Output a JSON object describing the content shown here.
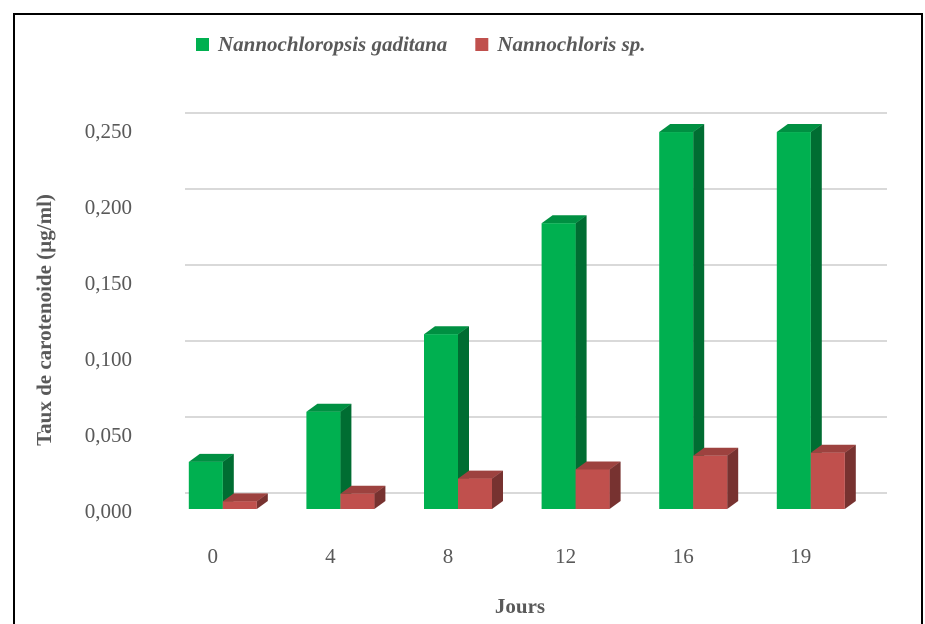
{
  "chart_data": {
    "type": "bar3d",
    "y_axis_label": "Taux de carotenoide (µg/ml)",
    "x_axis_label": "Jours",
    "categories": [
      "0",
      "4",
      "8",
      "12",
      "16",
      "19"
    ],
    "series": [
      {
        "name": "Nannochloropsis gaditana",
        "color": "#00b050",
        "values": [
          0.031,
          0.064,
          0.115,
          0.188,
          0.248,
          0.248
        ]
      },
      {
        "name": "Nannochloris sp.",
        "color": "#c0504d",
        "values": [
          0.005,
          0.01,
          0.02,
          0.026,
          0.035,
          0.037
        ]
      }
    ],
    "ylim": [
      0,
      0.25
    ],
    "yticks": [
      {
        "value": 0,
        "label": "0,000"
      },
      {
        "value": 0.05,
        "label": "0,050"
      },
      {
        "value": 0.1,
        "label": "0,100"
      },
      {
        "value": 0.15,
        "label": "0,150"
      },
      {
        "value": 0.2,
        "label": "0,200"
      },
      {
        "value": 0.25,
        "label": "0,250"
      }
    ],
    "grid": true,
    "legend": "top"
  }
}
